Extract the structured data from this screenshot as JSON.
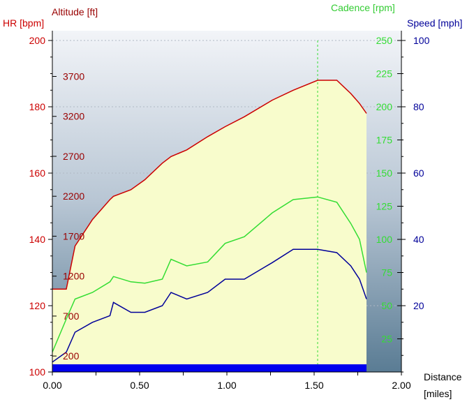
{
  "chart_data": {
    "type": "line",
    "axes": {
      "hr": {
        "label": "HR [bpm]",
        "range": [
          100,
          200
        ],
        "ticks": [
          100,
          120,
          140,
          160,
          180,
          200
        ],
        "color": "#cc0000"
      },
      "altitude": {
        "label": "Altitude [ft]",
        "range": [
          0,
          4150
        ],
        "ticks": [
          200,
          700,
          1200,
          1700,
          2200,
          2700,
          3200,
          3700
        ],
        "color": "#990000"
      },
      "cadence": {
        "label": "Cadence [rpm]",
        "range": [
          0,
          250
        ],
        "ticks": [
          25,
          50,
          75,
          100,
          125,
          150,
          175,
          200,
          225,
          250
        ],
        "color": "#33dd33"
      },
      "speed": {
        "label": "Speed [mph]",
        "range": [
          0,
          100
        ],
        "ticks": [
          20,
          40,
          60,
          80,
          100
        ],
        "color": "#000099"
      },
      "distance": {
        "label": "Distance",
        "unit": "[miles]",
        "range": [
          0,
          2.0
        ],
        "ticks": [
          "0.00",
          "0.25",
          "0.50",
          "0.75",
          "1.00",
          "1.25",
          "1.50",
          "1.75",
          "2.00"
        ]
      }
    },
    "x": [
      0.0,
      0.08,
      0.13,
      0.23,
      0.33,
      0.35,
      0.45,
      0.53,
      0.63,
      0.68,
      0.77,
      0.89,
      0.99,
      1.1,
      1.26,
      1.38,
      1.52,
      1.63,
      1.71,
      1.76,
      1.8
    ],
    "series": [
      {
        "name": "HR",
        "axis": "hr",
        "color": "#cc0000",
        "values": [
          125,
          125,
          138,
          146,
          152,
          153,
          155,
          158,
          163,
          165,
          167,
          171,
          174,
          177,
          182,
          185,
          188,
          188,
          184,
          181,
          178
        ]
      },
      {
        "name": "Cadence",
        "axis": "cadence",
        "color": "#33dd33",
        "values": [
          15,
          40,
          55,
          60,
          68,
          72,
          68,
          67,
          70,
          85,
          80,
          83,
          97,
          102,
          120,
          130,
          132,
          128,
          112,
          100,
          75
        ]
      },
      {
        "name": "Speed",
        "axis": "speed",
        "color": "#000099",
        "values": [
          3,
          6,
          12,
          15,
          17,
          21,
          18,
          18,
          20,
          24,
          22,
          24,
          28,
          28,
          33,
          37,
          37,
          36,
          32,
          28,
          22
        ]
      }
    ],
    "fill_color": "#f8fccc",
    "marker_x": 1.52,
    "grid": true
  }
}
